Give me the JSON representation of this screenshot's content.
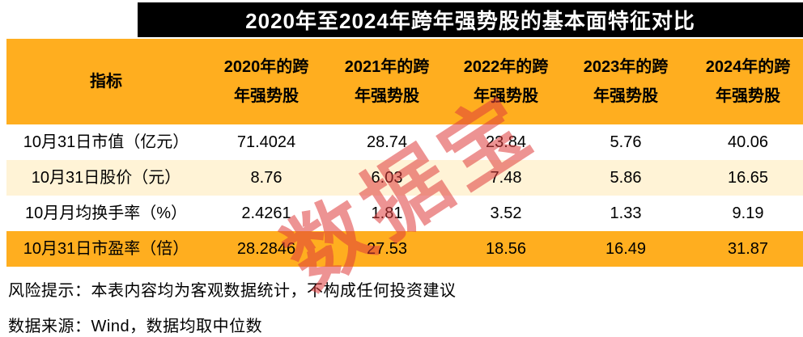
{
  "chart_data": {
    "type": "table",
    "title": "2020年至2024年跨年强势股的基本面特征对比",
    "columns": [
      "指标",
      "2020年的跨年强势股",
      "2021年的跨年强势股",
      "2022年的跨年强势股",
      "2023年的跨年强势股",
      "2024年的跨年强势股"
    ],
    "rows": [
      [
        "10月31日市值（亿元）",
        "71.4024",
        "28.74",
        "23.84",
        "5.76",
        "40.06"
      ],
      [
        "10月31日股价（元）",
        "8.76",
        "6.03",
        "7.48",
        "5.86",
        "16.65"
      ],
      [
        "10月月均换手率（%）",
        "2.4261",
        "1.81",
        "3.52",
        "1.33",
        "9.19"
      ],
      [
        "10月31日市盈率（倍）",
        "28.2846",
        "27.53",
        "18.56",
        "16.49",
        "31.87"
      ]
    ],
    "notes": [
      "风险提示：本表内容均为客观数据统计，不构成任何投资建议",
      "数据来源：Wind，数据均取中位数"
    ],
    "legend_position": "none",
    "grid": false
  },
  "watermark": "数据宝",
  "colors": {
    "title_bg": "#000000",
    "title_text": "#FFFFFF",
    "header_bg": "#FFAE1F",
    "row_alt_bg": "#FFF3D6",
    "row_highlight_bg": "#FFAE1F",
    "watermark": "#E03C3C"
  }
}
